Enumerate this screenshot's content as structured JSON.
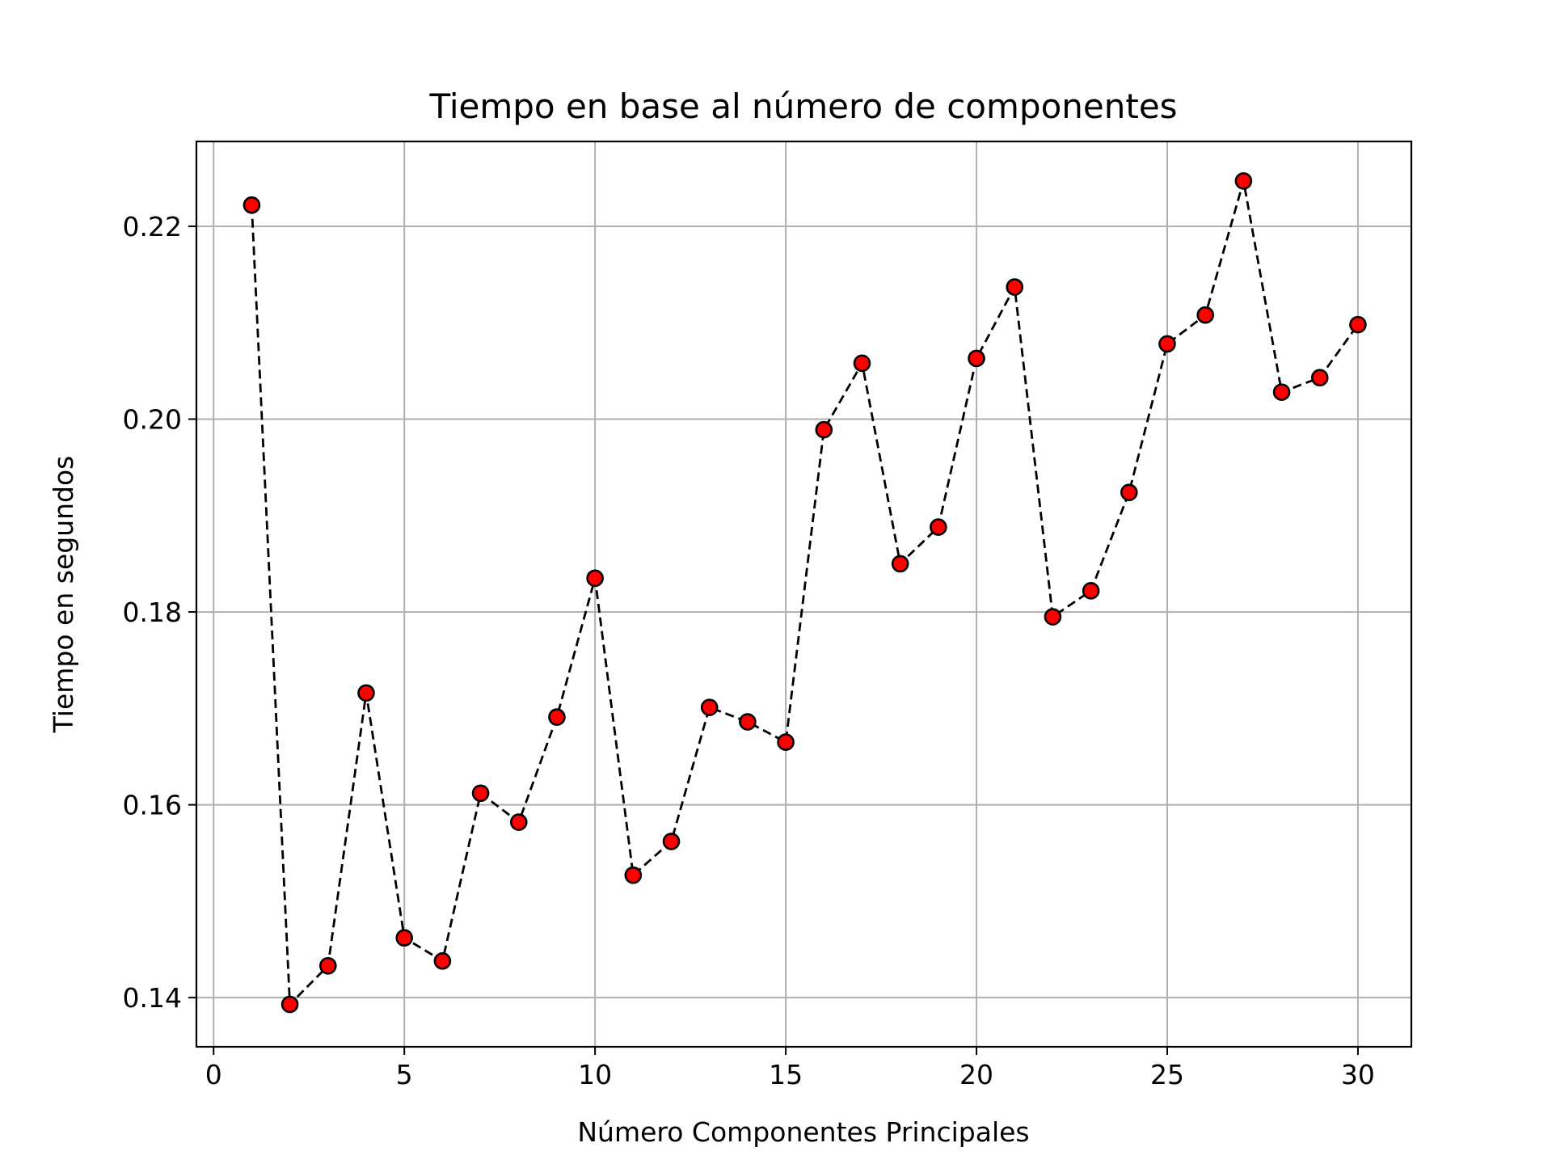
{
  "chart_data": {
    "type": "line",
    "title": "Tiempo en base al número de componentes",
    "xlabel": "Número Componentes Principales",
    "ylabel": "Tiempo en segundos",
    "xlim": [
      -0.45,
      31.4
    ],
    "ylim": [
      0.1349,
      0.2288
    ],
    "xticks": [
      0,
      5,
      10,
      15,
      20,
      25,
      30
    ],
    "xtick_labels": [
      "0",
      "5",
      "10",
      "15",
      "20",
      "25",
      "30"
    ],
    "yticks": [
      0.14,
      0.16,
      0.18,
      0.2,
      0.22
    ],
    "ytick_labels": [
      "0.14",
      "0.16",
      "0.18",
      "0.20",
      "0.22"
    ],
    "grid": true,
    "legend": "none",
    "line_style": "dashed",
    "line_color": "#000000",
    "marker_color": "#ff0000",
    "marker_edge_color": "#000000",
    "x": [
      1,
      2,
      3,
      4,
      5,
      6,
      7,
      8,
      9,
      10,
      11,
      12,
      13,
      14,
      15,
      16,
      17,
      18,
      19,
      20,
      21,
      22,
      23,
      24,
      25,
      26,
      27,
      28,
      29,
      30
    ],
    "y": [
      0.2222,
      0.1393,
      0.1433,
      0.1716,
      0.1462,
      0.1438,
      0.1612,
      0.1582,
      0.1691,
      0.1835,
      0.1527,
      0.1562,
      0.1701,
      0.1686,
      0.1665,
      0.1989,
      0.2058,
      0.185,
      0.1888,
      0.2063,
      0.2137,
      0.1795,
      0.1822,
      0.1924,
      0.2078,
      0.2108,
      0.2247,
      0.2028,
      0.2043,
      0.2098
    ]
  }
}
